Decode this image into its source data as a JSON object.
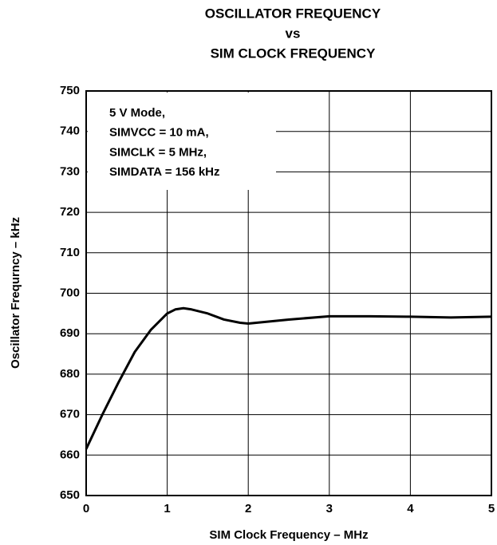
{
  "chart_data": {
    "type": "line",
    "title": [
      "OSCILLATOR FREQUENCY",
      "vs",
      "SIM CLOCK FREQUENCY"
    ],
    "x_label": "SIM Clock Frequency – MHz",
    "y_label": "Oscillator Frequrncy – kHz",
    "annotation": [
      "5 V Mode,",
      "SIMVCC = 10 mA,",
      "SIMCLK = 5 MHz,",
      "SIMDATA = 156 kHz"
    ],
    "x": [
      0,
      0.2,
      0.4,
      0.6,
      0.8,
      1.0,
      1.1,
      1.2,
      1.3,
      1.5,
      1.7,
      1.9,
      2.0,
      2.5,
      3.0,
      3.5,
      4.0,
      4.5,
      5.0
    ],
    "series": [
      {
        "color": "#000000",
        "values": [
          661.5,
          670,
          678,
          685.5,
          691,
          695,
          696,
          696.3,
          696,
          695,
          693.5,
          692.7,
          692.5,
          693.5,
          694.3,
          694.3,
          694.2,
          694,
          694.2
        ]
      }
    ],
    "xlim": [
      0,
      5
    ],
    "xticks": [
      0,
      1,
      2,
      3,
      4,
      5
    ],
    "ylim": [
      650,
      750
    ],
    "yticks": [
      650,
      660,
      670,
      680,
      690,
      700,
      710,
      720,
      730,
      740,
      750
    ],
    "grid": true
  }
}
